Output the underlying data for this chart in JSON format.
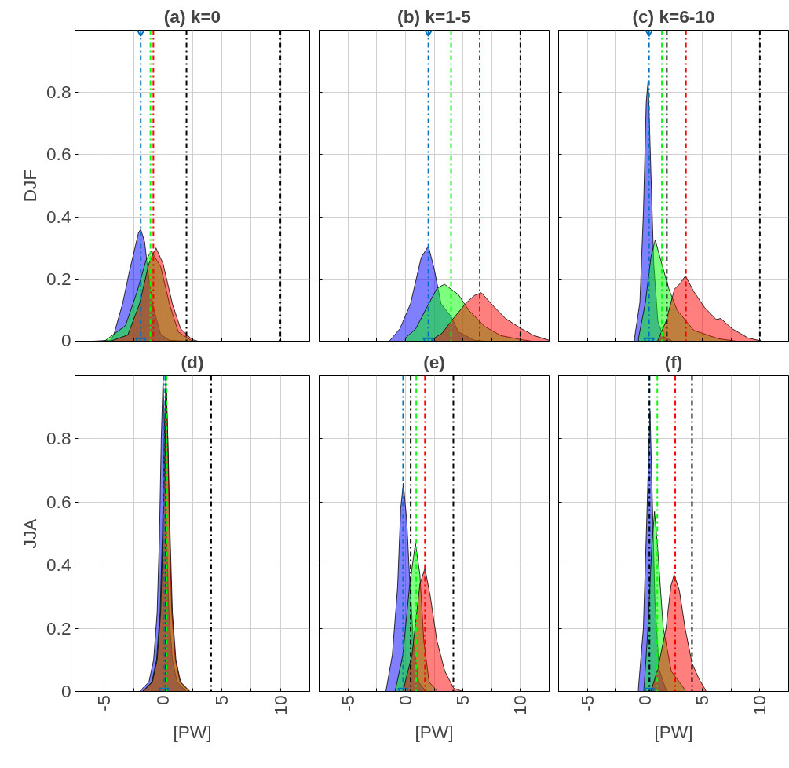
{
  "chart_data": [
    {
      "type": "area",
      "title": "(a) k=0",
      "ylabel": "DJF",
      "xlim": [
        -7.5,
        12.5
      ],
      "ylim": [
        0,
        1
      ],
      "xticks": [
        -5,
        {
          "value": -2.5,
          "label": null
        },
        0,
        {
          "value": 2.5,
          "label": null
        },
        5,
        {
          "value": 7.5,
          "label": null
        },
        10
      ],
      "yticks": [
        0,
        0.2,
        0.4,
        0.6,
        0.8
      ],
      "grid": true,
      "tick_labels": "y",
      "series": [
        {
          "color": "#0000ff",
          "x": [
            -6,
            -4.5,
            -4.2,
            -3.45,
            -2.83,
            -2.08,
            -1.9,
            -1.57,
            -1.2,
            -0.82,
            -0.2,
            0.55,
            2
          ],
          "values": [
            0,
            0.003,
            0.02,
            0.12,
            0.23,
            0.35,
            0.36,
            0.32,
            0.2,
            0.107,
            0.022,
            0.003,
            0
          ]
        },
        {
          "color": "#00ff00",
          "x": [
            -5,
            -3.2,
            -2.2,
            -1.45,
            -1.0,
            -0.2,
            0.55,
            1.3,
            2.5
          ],
          "values": [
            0,
            0.05,
            0.16,
            0.26,
            0.29,
            0.24,
            0.12,
            0.03,
            0
          ]
        },
        {
          "color": "#ff0000",
          "x": [
            -4.5,
            -3,
            -2,
            -1.2,
            -0.6,
            0,
            0.8,
            1.5,
            2.5,
            3
          ],
          "values": [
            0,
            0.02,
            0.12,
            0.25,
            0.3,
            0.25,
            0.12,
            0.04,
            0.005,
            0
          ]
        },
        {
          "type": "scatter",
          "marker": "triangle",
          "color": "#0072bd",
          "x": [
            -1.9,
            -1.9
          ],
          "values": [
            0,
            1
          ]
        }
      ],
      "ref_lines": [
        {
          "axis": "x",
          "value": -1.9,
          "color": "#0072bd"
        },
        {
          "axis": "x",
          "value": -1.07,
          "color": "#00ff00"
        },
        {
          "axis": "x",
          "value": -0.82,
          "color": "#ff0000"
        },
        {
          "axis": "x",
          "value": 2,
          "color": "#000000"
        },
        {
          "axis": "x",
          "value": 10,
          "color": "#000000"
        }
      ]
    },
    {
      "type": "area",
      "title": "(b) k=1-5",
      "xlim": [
        -7.5,
        12.5
      ],
      "ylim": [
        0,
        1
      ],
      "xticks": [
        -5,
        {
          "value": -2.5,
          "label": null
        },
        0,
        {
          "value": 2.5,
          "label": null
        },
        5,
        {
          "value": 7.5,
          "label": null
        },
        10
      ],
      "yticks": [
        0,
        0.2,
        0.4,
        0.6,
        0.8
      ],
      "grid": true,
      "tick_labels": false,
      "series": [
        {
          "color": "#0000ff",
          "x": [
            -1.4,
            -0.48,
            0.44,
            1.38,
            2.0,
            2.52,
            3.1,
            3.97,
            4.6,
            6.0,
            7
          ],
          "values": [
            0,
            0.04,
            0.12,
            0.27,
            0.306,
            0.23,
            0.12,
            0.08,
            0.03,
            0.003,
            0
          ]
        },
        {
          "color": "#00ff00",
          "x": [
            0,
            0.9,
            1.84,
            2.75,
            3.4,
            4.6,
            5.5,
            6.9,
            8.3,
            10.1,
            11
          ],
          "values": [
            0.01,
            0.04,
            0.107,
            0.17,
            0.183,
            0.15,
            0.1,
            0.047,
            0.018,
            0.005,
            0
          ]
        },
        {
          "color": "#ff0000",
          "x": [
            2.3,
            3.2,
            4.1,
            5.3,
            6.0,
            6.6,
            7.6,
            8.7,
            10.1,
            11.2,
            12.5
          ],
          "values": [
            0.005,
            0.026,
            0.07,
            0.124,
            0.147,
            0.156,
            0.115,
            0.073,
            0.04,
            0.018,
            0.003
          ]
        },
        {
          "type": "scatter",
          "marker": "triangle",
          "color": "#0072bd",
          "x": [
            2.0,
            2.0
          ],
          "values": [
            0,
            1
          ]
        }
      ],
      "ref_lines": [
        {
          "axis": "x",
          "value": 2.0,
          "color": "#0072bd"
        },
        {
          "axis": "x",
          "value": 3.97,
          "color": "#00ff00"
        },
        {
          "axis": "x",
          "value": 6.46,
          "color": "#ff0000"
        },
        {
          "axis": "x",
          "value": 10,
          "color": "#000000"
        }
      ]
    },
    {
      "type": "area",
      "title": "(c) k=6-10",
      "xlim": [
        -7.5,
        12.5
      ],
      "ylim": [
        0,
        1
      ],
      "xticks": [
        -5,
        {
          "value": -2.5,
          "label": null
        },
        0,
        {
          "value": 2.5,
          "label": null
        },
        5,
        {
          "value": 7.5,
          "label": null
        },
        10
      ],
      "yticks": [
        0,
        0.2,
        0.4,
        0.6,
        0.8
      ],
      "grid": true,
      "tick_labels": false,
      "series": [
        {
          "color": "#0000ff",
          "x": [
            -0.9,
            -0.43,
            -0.12,
            0.12,
            0.29,
            0.48,
            0.77,
            1.13,
            1.6,
            2.3
          ],
          "values": [
            0.01,
            0.125,
            0.42,
            0.77,
            0.84,
            0.6,
            0.25,
            0.065,
            0.015,
            0.003
          ]
        },
        {
          "color": "#00ff00",
          "x": [
            -0.55,
            0.05,
            0.53,
            0.9,
            1.5,
            2.1,
            2.8,
            4.25,
            6.4,
            8
          ],
          "values": [
            0.01,
            0.125,
            0.27,
            0.326,
            0.245,
            0.167,
            0.1,
            0.035,
            0.008,
            0
          ]
        },
        {
          "color": "#ff0000",
          "x": [
            1.13,
            1.85,
            2.57,
            3.05,
            3.53,
            4.25,
            5.2,
            6.2,
            6.6,
            7.6,
            9.0,
            10
          ],
          "values": [
            0.003,
            0.065,
            0.167,
            0.185,
            0.21,
            0.16,
            0.108,
            0.07,
            0.073,
            0.04,
            0.01,
            0.002
          ]
        },
        {
          "type": "scatter",
          "marker": "triangle",
          "color": "#0072bd",
          "x": [
            0.36,
            0.36
          ],
          "values": [
            0,
            1
          ]
        }
      ],
      "ref_lines": [
        {
          "axis": "x",
          "value": 0.36,
          "color": "#0072bd"
        },
        {
          "axis": "x",
          "value": 1.48,
          "color": "#00ff00"
        },
        {
          "axis": "x",
          "value": 1.91,
          "color": "#000000"
        },
        {
          "axis": "x",
          "value": 3.57,
          "color": "#ff0000"
        },
        {
          "axis": "x",
          "value": 10,
          "color": "#000000"
        }
      ]
    },
    {
      "type": "area",
      "title": "(d)",
      "ylabel": "JJA",
      "xlabel": "[PW]",
      "xlim": [
        -7.5,
        12.5
      ],
      "ylim": [
        0,
        1
      ],
      "xticks": [
        -5,
        {
          "value": -2.5,
          "label": null
        },
        0,
        {
          "value": 2.5,
          "label": null
        },
        5,
        {
          "value": 7.5,
          "label": null
        },
        10
      ],
      "yticks": [
        0,
        0.2,
        0.4,
        0.6,
        0.8
      ],
      "grid": true,
      "series": [
        {
          "color": "#0000ff",
          "x": [
            -2,
            -1.2,
            -0.8,
            -0.5,
            -0.3,
            -0.15,
            0,
            0.15,
            0.3,
            0.5,
            0.8,
            1.2,
            2
          ],
          "values": [
            0,
            0.03,
            0.1,
            0.25,
            0.5,
            0.8,
            0.99,
            0.8,
            0.5,
            0.25,
            0.1,
            0.03,
            0
          ]
        },
        {
          "color": "#00ff00",
          "x": [
            -1.75,
            -0.95,
            -0.55,
            -0.25,
            -0.05,
            0.1,
            0.25,
            0.4,
            0.55,
            0.75,
            1.05,
            1.45,
            2.25
          ],
          "values": [
            0,
            0.03,
            0.1,
            0.25,
            0.5,
            0.8,
            0.99,
            0.8,
            0.5,
            0.25,
            0.1,
            0.03,
            0
          ]
        },
        {
          "color": "#ff0000",
          "x": [
            -1.7,
            -0.9,
            -0.5,
            -0.2,
            0,
            0.15,
            0.3,
            0.45,
            0.6,
            0.8,
            1.1,
            1.5,
            2.3
          ],
          "values": [
            0,
            0.03,
            0.1,
            0.25,
            0.5,
            0.75,
            0.95,
            0.75,
            0.5,
            0.25,
            0.1,
            0.03,
            0
          ]
        },
        {
          "type": "scatter",
          "marker": "triangle",
          "color": "#0072bd",
          "x": [
            0.07
          ],
          "values": [
            0
          ]
        }
      ],
      "ref_lines": [
        {
          "axis": "x",
          "value": 0.07,
          "color": "#0072bd"
        },
        {
          "axis": "x",
          "value": 0.25,
          "color": "#000000"
        },
        {
          "axis": "x",
          "value": 0.3,
          "color": "#00ff00"
        },
        {
          "axis": "x",
          "value": 4.1,
          "color": "#000000"
        }
      ]
    },
    {
      "type": "area",
      "title": "(e)",
      "xlabel": "[PW]",
      "xlim": [
        -7.5,
        12.5
      ],
      "ylim": [
        0,
        1
      ],
      "xticks": [
        -5,
        {
          "value": -2.5,
          "label": null
        },
        0,
        {
          "value": 2.5,
          "label": null
        },
        5,
        {
          "value": 7.5,
          "label": null
        },
        10
      ],
      "yticks": [
        0,
        0.2,
        0.4,
        0.6,
        0.8
      ],
      "grid": true,
      "tick_labels": "x",
      "series": [
        {
          "color": "#0000ff",
          "x": [
            -1.7,
            -1.14,
            -0.68,
            -0.41,
            -0.18,
            0.12,
            0.35,
            0.69,
            1.15,
            1.8
          ],
          "values": [
            0,
            0.115,
            0.33,
            0.58,
            0.66,
            0.54,
            0.37,
            0.16,
            0.03,
            0
          ]
        },
        {
          "color": "#00ff00",
          "x": [
            -0.9,
            -0.22,
            0.35,
            0.87,
            1.26,
            1.6,
            2.06,
            2.8
          ],
          "values": [
            0,
            0.115,
            0.33,
            0.47,
            0.37,
            0.16,
            0.03,
            0
          ]
        },
        {
          "color": "#ff0000",
          "x": [
            -0.22,
            0.57,
            1.26,
            1.7,
            2.17,
            2.74,
            3.43,
            4.2,
            5
          ],
          "values": [
            0,
            0.115,
            0.34,
            0.39,
            0.3,
            0.16,
            0.064,
            0.01,
            0
          ]
        },
        {
          "type": "scatter",
          "marker": "triangle",
          "color": "#0072bd",
          "x": [
            -0.2
          ],
          "values": [
            0
          ]
        }
      ],
      "ref_lines": [
        {
          "axis": "x",
          "value": -0.2,
          "color": "#0072bd"
        },
        {
          "axis": "x",
          "value": 0.46,
          "color": "#000000"
        },
        {
          "axis": "x",
          "value": 0.94,
          "color": "#00ff00"
        },
        {
          "axis": "x",
          "value": 1.7,
          "color": "#ff0000"
        },
        {
          "axis": "x",
          "value": 4.17,
          "color": "#000000"
        }
      ]
    },
    {
      "type": "area",
      "title": "(f)",
      "xlabel": "[PW]",
      "xlim": [
        -7.5,
        12.5
      ],
      "ylim": [
        0,
        1
      ],
      "xticks": [
        -5,
        {
          "value": -2.5,
          "label": null
        },
        0,
        {
          "value": 2.5,
          "label": null
        },
        5,
        {
          "value": 7.5,
          "label": null
        },
        10
      ],
      "yticks": [
        0,
        0.2,
        0.4,
        0.6,
        0.8
      ],
      "grid": true,
      "tick_labels": "x",
      "series": [
        {
          "color": "#0000ff",
          "x": [
            -0.56,
            -0.13,
            0.16,
            0.45,
            0.64,
            0.88,
            1.24,
            1.84
          ],
          "values": [
            0.01,
            0.2,
            0.54,
            0.89,
            0.62,
            0.285,
            0.07,
            0.005
          ]
        },
        {
          "color": "#00ff00",
          "x": [
            -0.09,
            0.27,
            0.59,
            0.84,
            1.12,
            1.6,
            2.3,
            3.5
          ],
          "values": [
            0,
            0.2,
            0.45,
            0.57,
            0.45,
            0.2,
            0.064,
            0.005
          ]
        },
        {
          "color": "#ff0000",
          "x": [
            0.52,
            1.12,
            1.84,
            2.27,
            2.55,
            3.0,
            3.5,
            4.1,
            4.7,
            5.3
          ],
          "values": [
            0,
            0.07,
            0.2,
            0.335,
            0.37,
            0.32,
            0.2,
            0.09,
            0.04,
            0.003
          ]
        },
        {
          "type": "scatter",
          "marker": "triangle",
          "color": "#0072bd",
          "x": [
            0.4
          ],
          "values": [
            0
          ]
        }
      ],
      "ref_lines": [
        {
          "axis": "x",
          "value": 0.4,
          "color": "#0072bd"
        },
        {
          "axis": "x",
          "value": 0.4,
          "color": "#000000"
        },
        {
          "axis": "x",
          "value": 1.08,
          "color": "#00ff00"
        },
        {
          "axis": "x",
          "value": 2.64,
          "color": "#ff0000"
        },
        {
          "axis": "x",
          "value": 4.1,
          "color": "#000000"
        }
      ]
    }
  ]
}
